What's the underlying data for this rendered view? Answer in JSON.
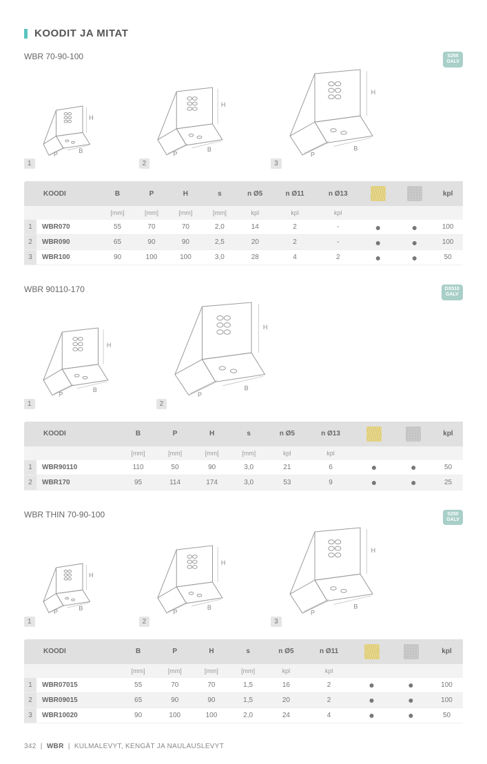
{
  "page_title": "KOODIT JA MITAT",
  "footer": {
    "page": "342",
    "brand": "WBR",
    "text": "KULMALEVYT, KENGÄT JA NAULAUSLEVYT"
  },
  "sections": [
    {
      "title": "WBR 70-90-100",
      "badge": {
        "line1": "S250",
        "line2": "GALV"
      },
      "diagrams": 3,
      "diagram_sizes": [
        70,
        95,
        120
      ],
      "columns": [
        "KOODI",
        "B",
        "P",
        "H",
        "s",
        "n Ø5",
        "n Ø11",
        "n Ø13",
        "wood",
        "concrete",
        "kpl"
      ],
      "units": [
        "",
        "[mm]",
        "[mm]",
        "[mm]",
        "[mm]",
        "kpl",
        "kpl",
        "kpl",
        "",
        "",
        ""
      ],
      "rows": [
        {
          "n": "1",
          "code": "WBR070",
          "B": "55",
          "P": "70",
          "H": "70",
          "s": "2,0",
          "n5": "14",
          "n11": "2",
          "n13": "-",
          "wood": "●",
          "conc": "●",
          "kpl": "100"
        },
        {
          "n": "2",
          "code": "WBR090",
          "B": "65",
          "P": "90",
          "H": "90",
          "s": "2,5",
          "n5": "20",
          "n11": "2",
          "n13": "-",
          "wood": "●",
          "conc": "●",
          "kpl": "100"
        },
        {
          "n": "3",
          "code": "WBR100",
          "B": "90",
          "P": "100",
          "H": "100",
          "s": "3,0",
          "n5": "28",
          "n11": "4",
          "n13": "2",
          "wood": "●",
          "conc": "●",
          "kpl": "50"
        }
      ]
    },
    {
      "title": "WBR 90110-170",
      "badge": {
        "line1": "DX510",
        "line2": "GALV"
      },
      "diagrams": 2,
      "diagram_sizes": [
        95,
        130
      ],
      "columns": [
        "KOODI",
        "B",
        "P",
        "H",
        "s",
        "n Ø5",
        "n Ø13",
        "wood",
        "concrete",
        "kpl"
      ],
      "units": [
        "",
        "[mm]",
        "[mm]",
        "[mm]",
        "[mm]",
        "kpl",
        "kpl",
        "",
        "",
        ""
      ],
      "rows": [
        {
          "n": "1",
          "code": "WBR90110",
          "B": "110",
          "P": "50",
          "H": "90",
          "s": "3,0",
          "n5": "21",
          "n13": "6",
          "wood": "●",
          "conc": "●",
          "kpl": "50"
        },
        {
          "n": "2",
          "code": "WBR170",
          "B": "95",
          "P": "114",
          "H": "174",
          "s": "3,0",
          "n5": "53",
          "n13": "9",
          "wood": "●",
          "conc": "●",
          "kpl": "25"
        }
      ]
    },
    {
      "title": "WBR THIN 70-90-100",
      "badge": {
        "line1": "S250",
        "line2": "GALV"
      },
      "diagrams": 3,
      "diagram_sizes": [
        70,
        95,
        120
      ],
      "columns": [
        "KOODI",
        "B",
        "P",
        "H",
        "s",
        "n Ø5",
        "n Ø11",
        "wood",
        "concrete",
        "kpl"
      ],
      "units": [
        "",
        "[mm]",
        "[mm]",
        "[mm]",
        "[mm]",
        "kpl",
        "kpl",
        "",
        "",
        ""
      ],
      "rows": [
        {
          "n": "1",
          "code": "WBR07015",
          "B": "55",
          "P": "70",
          "H": "70",
          "s": "1,5",
          "n5": "16",
          "n11": "2",
          "wood": "●",
          "conc": "●",
          "kpl": "100"
        },
        {
          "n": "2",
          "code": "WBR09015",
          "B": "65",
          "P": "90",
          "H": "90",
          "s": "1,5",
          "n5": "20",
          "n11": "2",
          "wood": "●",
          "conc": "●",
          "kpl": "100"
        },
        {
          "n": "3",
          "code": "WBR10020",
          "B": "90",
          "P": "100",
          "H": "100",
          "s": "2,0",
          "n5": "24",
          "n11": "4",
          "wood": "●",
          "conc": "●",
          "kpl": "50"
        }
      ]
    }
  ],
  "style": {
    "accent": "#5bc4bf",
    "header_bg": "#e0e0e0",
    "subheader_bg": "#f3f3f3",
    "row_alt": "#f2f2f2",
    "text": "#666",
    "muted": "#999",
    "diagram_stroke": "#999"
  }
}
